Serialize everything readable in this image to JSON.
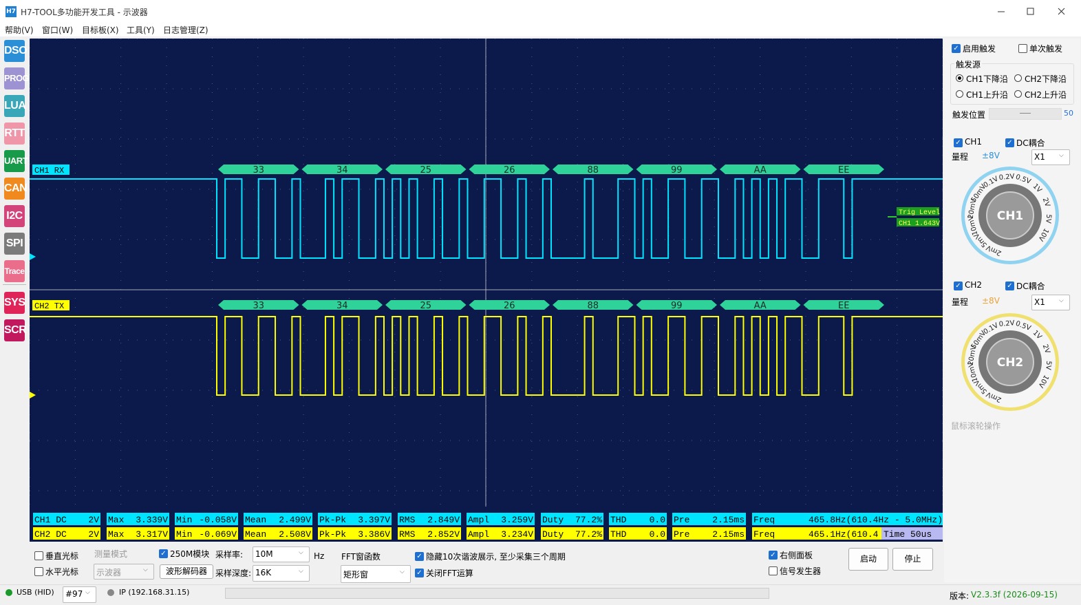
{
  "window": {
    "icon": "H7",
    "title": "H7-TOOL多功能开发工具 - 示波器"
  },
  "menu": [
    "帮助(V)",
    "窗口(W)",
    "目标板(X)",
    "工具(Y)",
    "日志管理(Z)"
  ],
  "sidebar": [
    {
      "label": "DSO",
      "color": "#2a8fd6"
    },
    {
      "label": "PROG",
      "color": "#9d93d2"
    },
    {
      "label": "LUA",
      "color": "#3aa7b9"
    },
    {
      "label": "RTT",
      "color": "#ef96a8"
    },
    {
      "label": "UART",
      "color": "#179a49"
    },
    {
      "label": "CAN",
      "color": "#f08a1e"
    },
    {
      "label": "I2C",
      "color": "#d2447a"
    },
    {
      "label": "SPI",
      "color": "#7b7b7b"
    },
    {
      "label": "Trace",
      "color": "#ea6d8c"
    },
    {
      "label": "SYS",
      "color": "#e0245a"
    },
    {
      "label": "SCR",
      "color": "#c2185e"
    }
  ],
  "scope": {
    "channels": [
      {
        "tag": "CH1 RX",
        "color": "#00e5ff",
        "bytes": [
          "33",
          "34",
          "25",
          "26",
          "88",
          "99",
          "AA",
          "EE"
        ]
      },
      {
        "tag": "CH2 TX",
        "color": "#ffff00",
        "bytes": [
          "33",
          "34",
          "25",
          "26",
          "88",
          "99",
          "AA",
          "EE"
        ]
      }
    ],
    "trigger_label": "Trig Level",
    "trigger_value": "CH1 1.643V",
    "measurements": [
      [
        {
          "name": "CH1 DC",
          "value": "2V"
        },
        {
          "name": "Max",
          "value": "3.339V"
        },
        {
          "name": "Min",
          "value": "-0.058V"
        },
        {
          "name": "Mean",
          "value": "2.499V"
        },
        {
          "name": "Pk-Pk",
          "value": "3.397V"
        },
        {
          "name": "RMS",
          "value": "2.849V"
        },
        {
          "name": "Ampl",
          "value": "3.259V"
        },
        {
          "name": "Duty",
          "value": "77.2%"
        },
        {
          "name": "THD",
          "value": "0.0"
        },
        {
          "name": "Pre",
          "value": "2.15ms"
        },
        {
          "name": "Freq",
          "value": "465.8Hz(610.4Hz - 5.0MHz)"
        }
      ],
      [
        {
          "name": "CH2 DC",
          "value": "2V"
        },
        {
          "name": "Max",
          "value": "3.317V"
        },
        {
          "name": "Min",
          "value": "-0.069V"
        },
        {
          "name": "Mean",
          "value": "2.508V"
        },
        {
          "name": "Pk-Pk",
          "value": "3.386V"
        },
        {
          "name": "RMS",
          "value": "2.852V"
        },
        {
          "name": "Ampl",
          "value": "3.234V"
        },
        {
          "name": "Duty",
          "value": "77.2%"
        },
        {
          "name": "THD",
          "value": "0.0"
        },
        {
          "name": "Pre",
          "value": "2.15ms"
        },
        {
          "name": "Freq",
          "value": "465.1Hz(610.4"
        }
      ]
    ],
    "time": "Time 50us"
  },
  "trigger_panel": {
    "enable": {
      "label": "启用触发",
      "checked": true
    },
    "single": {
      "label": "单次触发",
      "checked": false
    },
    "source": {
      "title": "触发源",
      "options": [
        {
          "label": "CH1下降沿",
          "selected": true
        },
        {
          "label": "CH2下降沿",
          "selected": false
        },
        {
          "label": "CH1上升沿",
          "selected": false
        },
        {
          "label": "CH2上升沿",
          "selected": false
        }
      ]
    },
    "position": {
      "label": "触发位置",
      "value": 50
    },
    "channels": [
      {
        "name": {
          "label": "CH1",
          "checked": true
        },
        "coupling": {
          "label": "DC耦合",
          "checked": true
        },
        "range_label": "量程",
        "range": "±8V",
        "range_color": "#2a8fd6",
        "probe": "X1",
        "knob": "CH1",
        "ring": "#8fd3f0"
      },
      {
        "name": {
          "label": "CH2",
          "checked": true
        },
        "coupling": {
          "label": "DC耦合",
          "checked": true
        },
        "range_label": "量程",
        "range": "±8V",
        "range_color": "#e8a33a",
        "probe": "X1",
        "knob": "CH2",
        "ring": "#f0e070"
      }
    ],
    "knob_labels": [
      "2mV",
      "5mV",
      "10mV",
      "20mV",
      "50mV",
      "0.1V",
      "0.2V",
      "0.5V",
      "1V",
      "2V",
      "5V",
      "10V"
    ],
    "hint": "鼠标滚轮操作"
  },
  "controls": {
    "vcursor": {
      "label": "垂直光标",
      "checked": false
    },
    "hcursor": {
      "label": "水平光标",
      "checked": false
    },
    "measure_mode": {
      "label": "测量模式",
      "value": "示波器"
    },
    "module": {
      "label": "250M模块",
      "checked": true
    },
    "decoder": "波形解码器",
    "sample_rate": {
      "label": "采样率:",
      "value": "10M",
      "unit": "Hz"
    },
    "depth": {
      "label": "采样深度:",
      "value": "16K"
    },
    "fft_window": {
      "label": "FFT窗函数",
      "value": "矩形窗"
    },
    "hide_harmonics": {
      "label": "隐藏10次谐波展示, 至少采集三个周期",
      "checked": true
    },
    "close_fft": {
      "label": "关闭FFT运算",
      "checked": true
    },
    "right_panel": {
      "label": "右侧面板",
      "checked": true
    },
    "siggen": {
      "label": "信号发生器",
      "checked": false
    },
    "start": "启动",
    "stop": "停止"
  },
  "status": {
    "usb": "USB (HID)",
    "port": "#97",
    "ip": "IP (192.168.31.15)",
    "version_label": "版本:",
    "version": "V2.3.3f (2026-09-15)"
  }
}
